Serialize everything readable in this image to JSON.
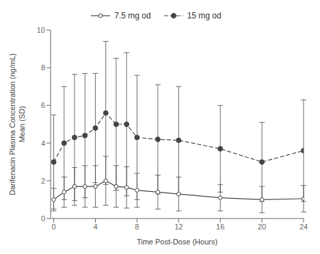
{
  "chart_data": {
    "type": "line",
    "xlabel": "Time Post-Dose (Hours)",
    "ylabel": "Darifenacin Plasma Concentration (ng/mL)\nMean (SD)",
    "x": [
      0,
      1,
      2,
      3,
      4,
      5,
      6,
      7,
      8,
      10,
      12,
      16,
      20,
      24
    ],
    "series": [
      {
        "name": "7.5 mg od",
        "color": "#444444",
        "line_style": "solid",
        "marker": "open_circle",
        "values": [
          1.0,
          1.4,
          1.7,
          1.7,
          1.7,
          2.0,
          1.7,
          1.65,
          1.5,
          1.4,
          1.3,
          1.1,
          1.0,
          1.05
        ],
        "error": [
          0.6,
          0.8,
          1.0,
          1.1,
          1.1,
          1.3,
          1.1,
          1.1,
          0.9,
          0.9,
          0.9,
          0.7,
          0.7,
          0.7
        ]
      },
      {
        "name": "15 mg od",
        "color": "#444444",
        "line_style": "dashed",
        "marker": "circle",
        "values": [
          3.0,
          4.0,
          4.3,
          4.4,
          4.8,
          5.6,
          5.0,
          5.0,
          4.3,
          4.2,
          4.15,
          3.7,
          3.0,
          3.6
        ],
        "error": [
          2.5,
          3.0,
          3.35,
          3.3,
          2.9,
          3.8,
          3.5,
          3.8,
          3.3,
          2.9,
          2.85,
          2.3,
          2.1,
          2.7
        ]
      }
    ],
    "xlim": [
      -0.3,
      24
    ],
    "ylim": [
      0,
      10
    ],
    "xticks": [
      0,
      4,
      8,
      12,
      16,
      20,
      24
    ],
    "yticks": [
      0,
      2,
      4,
      6,
      8,
      10
    ],
    "legend": "top",
    "grid": false
  }
}
